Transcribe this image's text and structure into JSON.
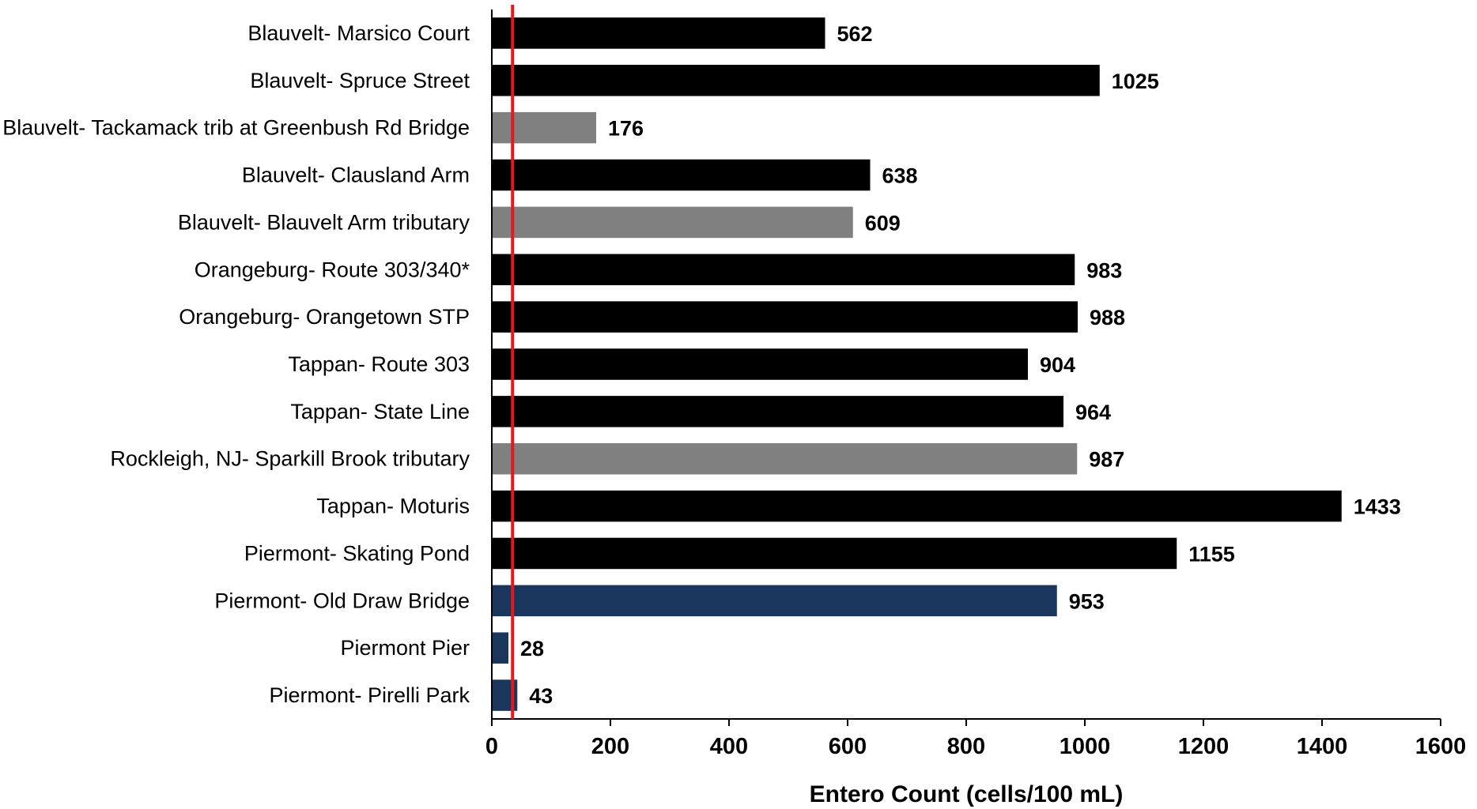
{
  "chart_data": {
    "type": "bar",
    "orientation": "horizontal",
    "title": "",
    "xlabel": "Entero Count (cells/100 mL)",
    "ylabel": "",
    "xlim": [
      0,
      1600
    ],
    "xticks": [
      0,
      200,
      400,
      600,
      800,
      1000,
      1200,
      1400,
      1600
    ],
    "grid": false,
    "legend": "none",
    "reference_line": {
      "x": 35,
      "color": "#e31a1c"
    },
    "colors": {
      "black": "#000000",
      "gray": "#808080",
      "navy": "#1b365d"
    },
    "bars": [
      {
        "category": "Blauvelt- Marsico Court",
        "value": 562,
        "color": "#000000"
      },
      {
        "category": "Blauvelt- Spruce Street",
        "value": 1025,
        "color": "#000000"
      },
      {
        "category": "Blauvelt- Tackamack trib at Greenbush Rd Bridge",
        "value": 176,
        "color": "#808080"
      },
      {
        "category": "Blauvelt- Clausland Arm",
        "value": 638,
        "color": "#000000"
      },
      {
        "category": "Blauvelt- Blauvelt Arm tributary",
        "value": 609,
        "color": "#808080"
      },
      {
        "category": "Orangeburg- Route 303/340*",
        "value": 983,
        "color": "#000000"
      },
      {
        "category": "Orangeburg- Orangetown STP",
        "value": 988,
        "color": "#000000"
      },
      {
        "category": "Tappan- Route 303",
        "value": 904,
        "color": "#000000"
      },
      {
        "category": "Tappan- State Line",
        "value": 964,
        "color": "#000000"
      },
      {
        "category": "Rockleigh, NJ- Sparkill Brook tributary",
        "value": 987,
        "color": "#808080"
      },
      {
        "category": "Tappan- Moturis",
        "value": 1433,
        "color": "#000000"
      },
      {
        "category": "Piermont- Skating Pond",
        "value": 1155,
        "color": "#000000"
      },
      {
        "category": "Piermont- Old Draw Bridge",
        "value": 953,
        "color": "#1b365d"
      },
      {
        "category": "Piermont Pier",
        "value": 28,
        "color": "#1b365d"
      },
      {
        "category": "Piermont- Pirelli Park",
        "value": 43,
        "color": "#1b365d"
      }
    ]
  }
}
